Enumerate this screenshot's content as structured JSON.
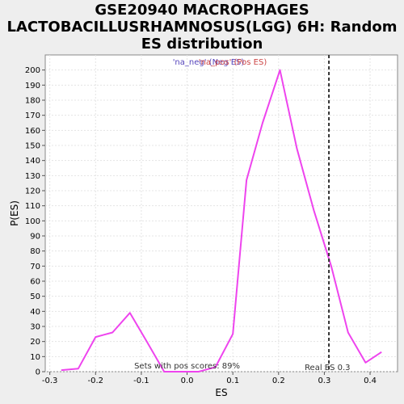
{
  "chart_data": {
    "type": "line",
    "title_lines": [
      "GSE20940 MACROPHAGES",
      "LACTOBACILLUSRHAMNOSUS(LGG) 6H: Random",
      "ES distribution"
    ],
    "xlabel": "ES",
    "ylabel": "P(ES)",
    "xlim": [
      -0.31,
      0.46
    ],
    "ylim": [
      0,
      210
    ],
    "xticks": [
      -0.3,
      -0.2,
      -0.1,
      0.0,
      0.1,
      0.2,
      0.3,
      0.4
    ],
    "xtick_labels": [
      "-0.3",
      "-0.2",
      "-0.1",
      "0.0",
      "0.1",
      "0.2",
      "0.3",
      "0.4"
    ],
    "yticks": [
      0,
      10,
      20,
      30,
      40,
      50,
      60,
      70,
      80,
      90,
      100,
      110,
      120,
      130,
      140,
      150,
      160,
      170,
      180,
      190,
      200
    ],
    "grid": true,
    "series": [
      {
        "color": "#ee44ee",
        "x": [
          -0.275,
          -0.238,
          -0.2,
          -0.163,
          -0.125,
          -0.088,
          -0.05,
          -0.013,
          0.025,
          0.062,
          0.1,
          0.13,
          0.165,
          0.203,
          0.24,
          0.277,
          0.315,
          0.352,
          0.39,
          0.425
        ],
        "y": [
          1,
          2,
          23,
          26,
          39,
          20,
          0,
          0,
          0,
          3,
          25,
          127,
          165,
          200,
          148,
          107,
          70,
          26,
          6,
          13
        ]
      }
    ],
    "real_es": {
      "x": 0.31,
      "label": "Real ES 0.3",
      "color": "#333333"
    },
    "annotation": "Sets with pos scores: 89%",
    "legend": {
      "placement": "top-center",
      "items": [
        {
          "label": "'na_neg' (Neg ES)",
          "color": "#5544bb"
        },
        {
          "label": "'na_pos' (Pos ES)",
          "color": "#cc4444"
        }
      ]
    }
  }
}
